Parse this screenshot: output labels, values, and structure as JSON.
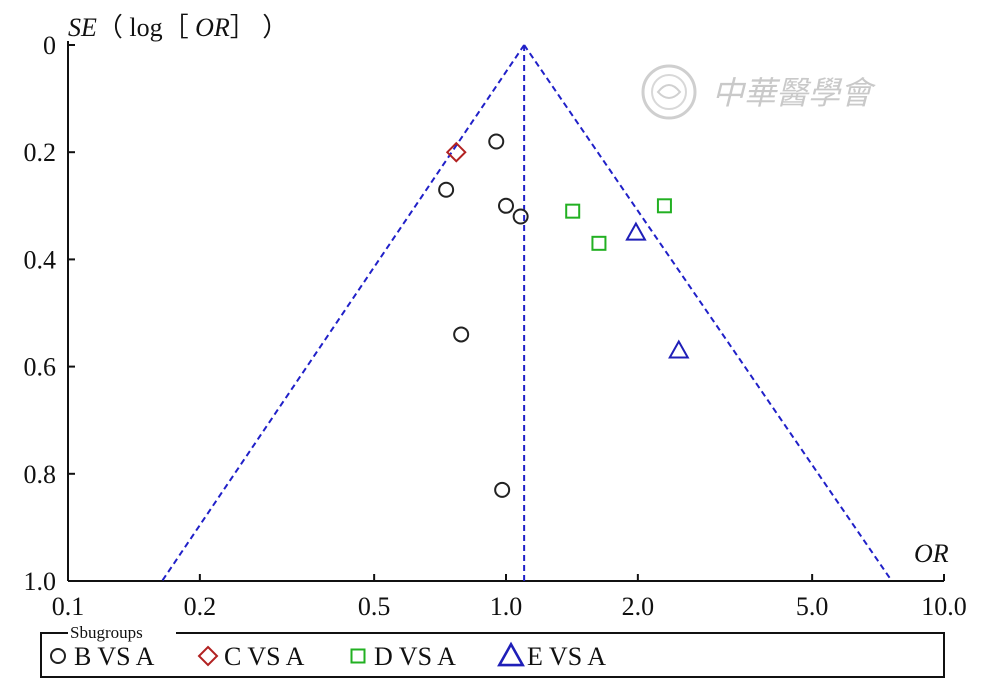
{
  "chart_data": {
    "type": "scatter",
    "title": "",
    "ylabel_italic": "SE",
    "ylabel_open": "（ log［ ",
    "ylabel_or": "OR",
    "ylabel_close": "］ ）",
    "xlabel": "OR",
    "x_scale": "log",
    "y_reversed": true,
    "xlim": [
      0.1,
      10.0
    ],
    "ylim": [
      0,
      1.0
    ],
    "x_ticks": [
      0.1,
      0.2,
      0.5,
      1.0,
      2.0,
      5.0,
      10.0
    ],
    "x_tick_labels": [
      "0.1",
      "0.2",
      "0.5",
      "1.0",
      "2.0",
      "5.0",
      "10.0"
    ],
    "y_ticks": [
      0,
      0.2,
      0.4,
      0.6,
      0.8,
      1.0
    ],
    "y_tick_labels": [
      "0",
      "0.2",
      "0.4",
      "0.6",
      "0.8",
      "1.0"
    ],
    "pooled_or": 1.1,
    "funnel_base_left": 0.164,
    "funnel_base_right": 7.6,
    "legend": {
      "title": "Sbugroups",
      "placement": "bottom"
    },
    "series": [
      {
        "name": "B VS A",
        "marker": "circle",
        "color": "#222222",
        "points": [
          {
            "x": 0.95,
            "y": 0.18
          },
          {
            "x": 0.73,
            "y": 0.27
          },
          {
            "x": 1.0,
            "y": 0.3
          },
          {
            "x": 1.08,
            "y": 0.32
          },
          {
            "x": 0.79,
            "y": 0.54
          },
          {
            "x": 0.98,
            "y": 0.83
          }
        ]
      },
      {
        "name": "C VS A",
        "marker": "diamond",
        "color": "#b22222",
        "points": [
          {
            "x": 0.77,
            "y": 0.2
          }
        ]
      },
      {
        "name": "D VS A",
        "marker": "square",
        "color": "#22b022",
        "points": [
          {
            "x": 1.42,
            "y": 0.31
          },
          {
            "x": 2.3,
            "y": 0.3
          },
          {
            "x": 1.63,
            "y": 0.37
          }
        ]
      },
      {
        "name": "E VS A",
        "marker": "triangle",
        "color": "#1f1fb8",
        "points": [
          {
            "x": 1.98,
            "y": 0.35
          },
          {
            "x": 2.48,
            "y": 0.57
          }
        ]
      }
    ]
  },
  "watermark": {
    "text": "中華醫學會",
    "seal_icon": "seal-icon"
  }
}
